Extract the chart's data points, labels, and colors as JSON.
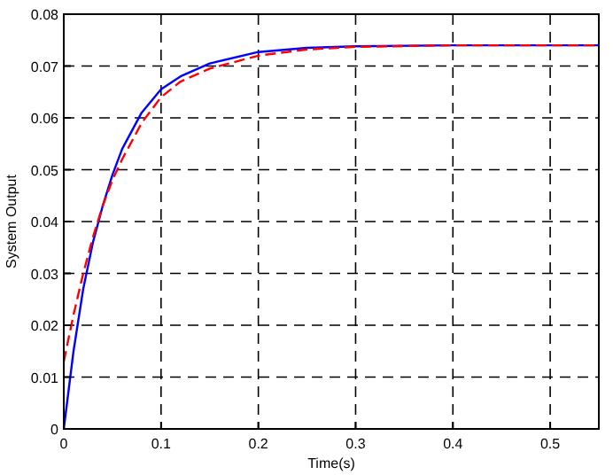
{
  "chart_data": {
    "type": "line",
    "xlabel": "Time(s)",
    "ylabel": "System Output",
    "x": [
      0,
      0.01,
      0.02,
      0.03,
      0.04,
      0.05,
      0.06,
      0.08,
      0.1,
      0.12,
      0.15,
      0.2,
      0.25,
      0.3,
      0.4,
      0.5,
      0.55
    ],
    "series": [
      {
        "color": "#0000ff",
        "line_style": "solid",
        "values": [
          0,
          0.015,
          0.027,
          0.036,
          0.043,
          0.049,
          0.054,
          0.061,
          0.0655,
          0.068,
          0.0705,
          0.0727,
          0.0735,
          0.0738,
          0.074,
          0.074,
          0.074
        ]
      },
      {
        "color": "#ff0000",
        "line_style": "dashed",
        "values": [
          0.013,
          0.022,
          0.03,
          0.037,
          0.043,
          0.048,
          0.052,
          0.059,
          0.064,
          0.067,
          0.0695,
          0.072,
          0.0732,
          0.0737,
          0.074,
          0.074,
          0.074
        ]
      }
    ],
    "xlim": [
      0,
      0.55
    ],
    "ylim": [
      0,
      0.08
    ],
    "xticks": [
      0,
      0.1,
      0.2,
      0.3,
      0.4,
      0.5
    ],
    "yticks": [
      0,
      0.01,
      0.02,
      0.03,
      0.04,
      0.05,
      0.06,
      0.07,
      0.08
    ],
    "grid": true,
    "marker": "none"
  }
}
